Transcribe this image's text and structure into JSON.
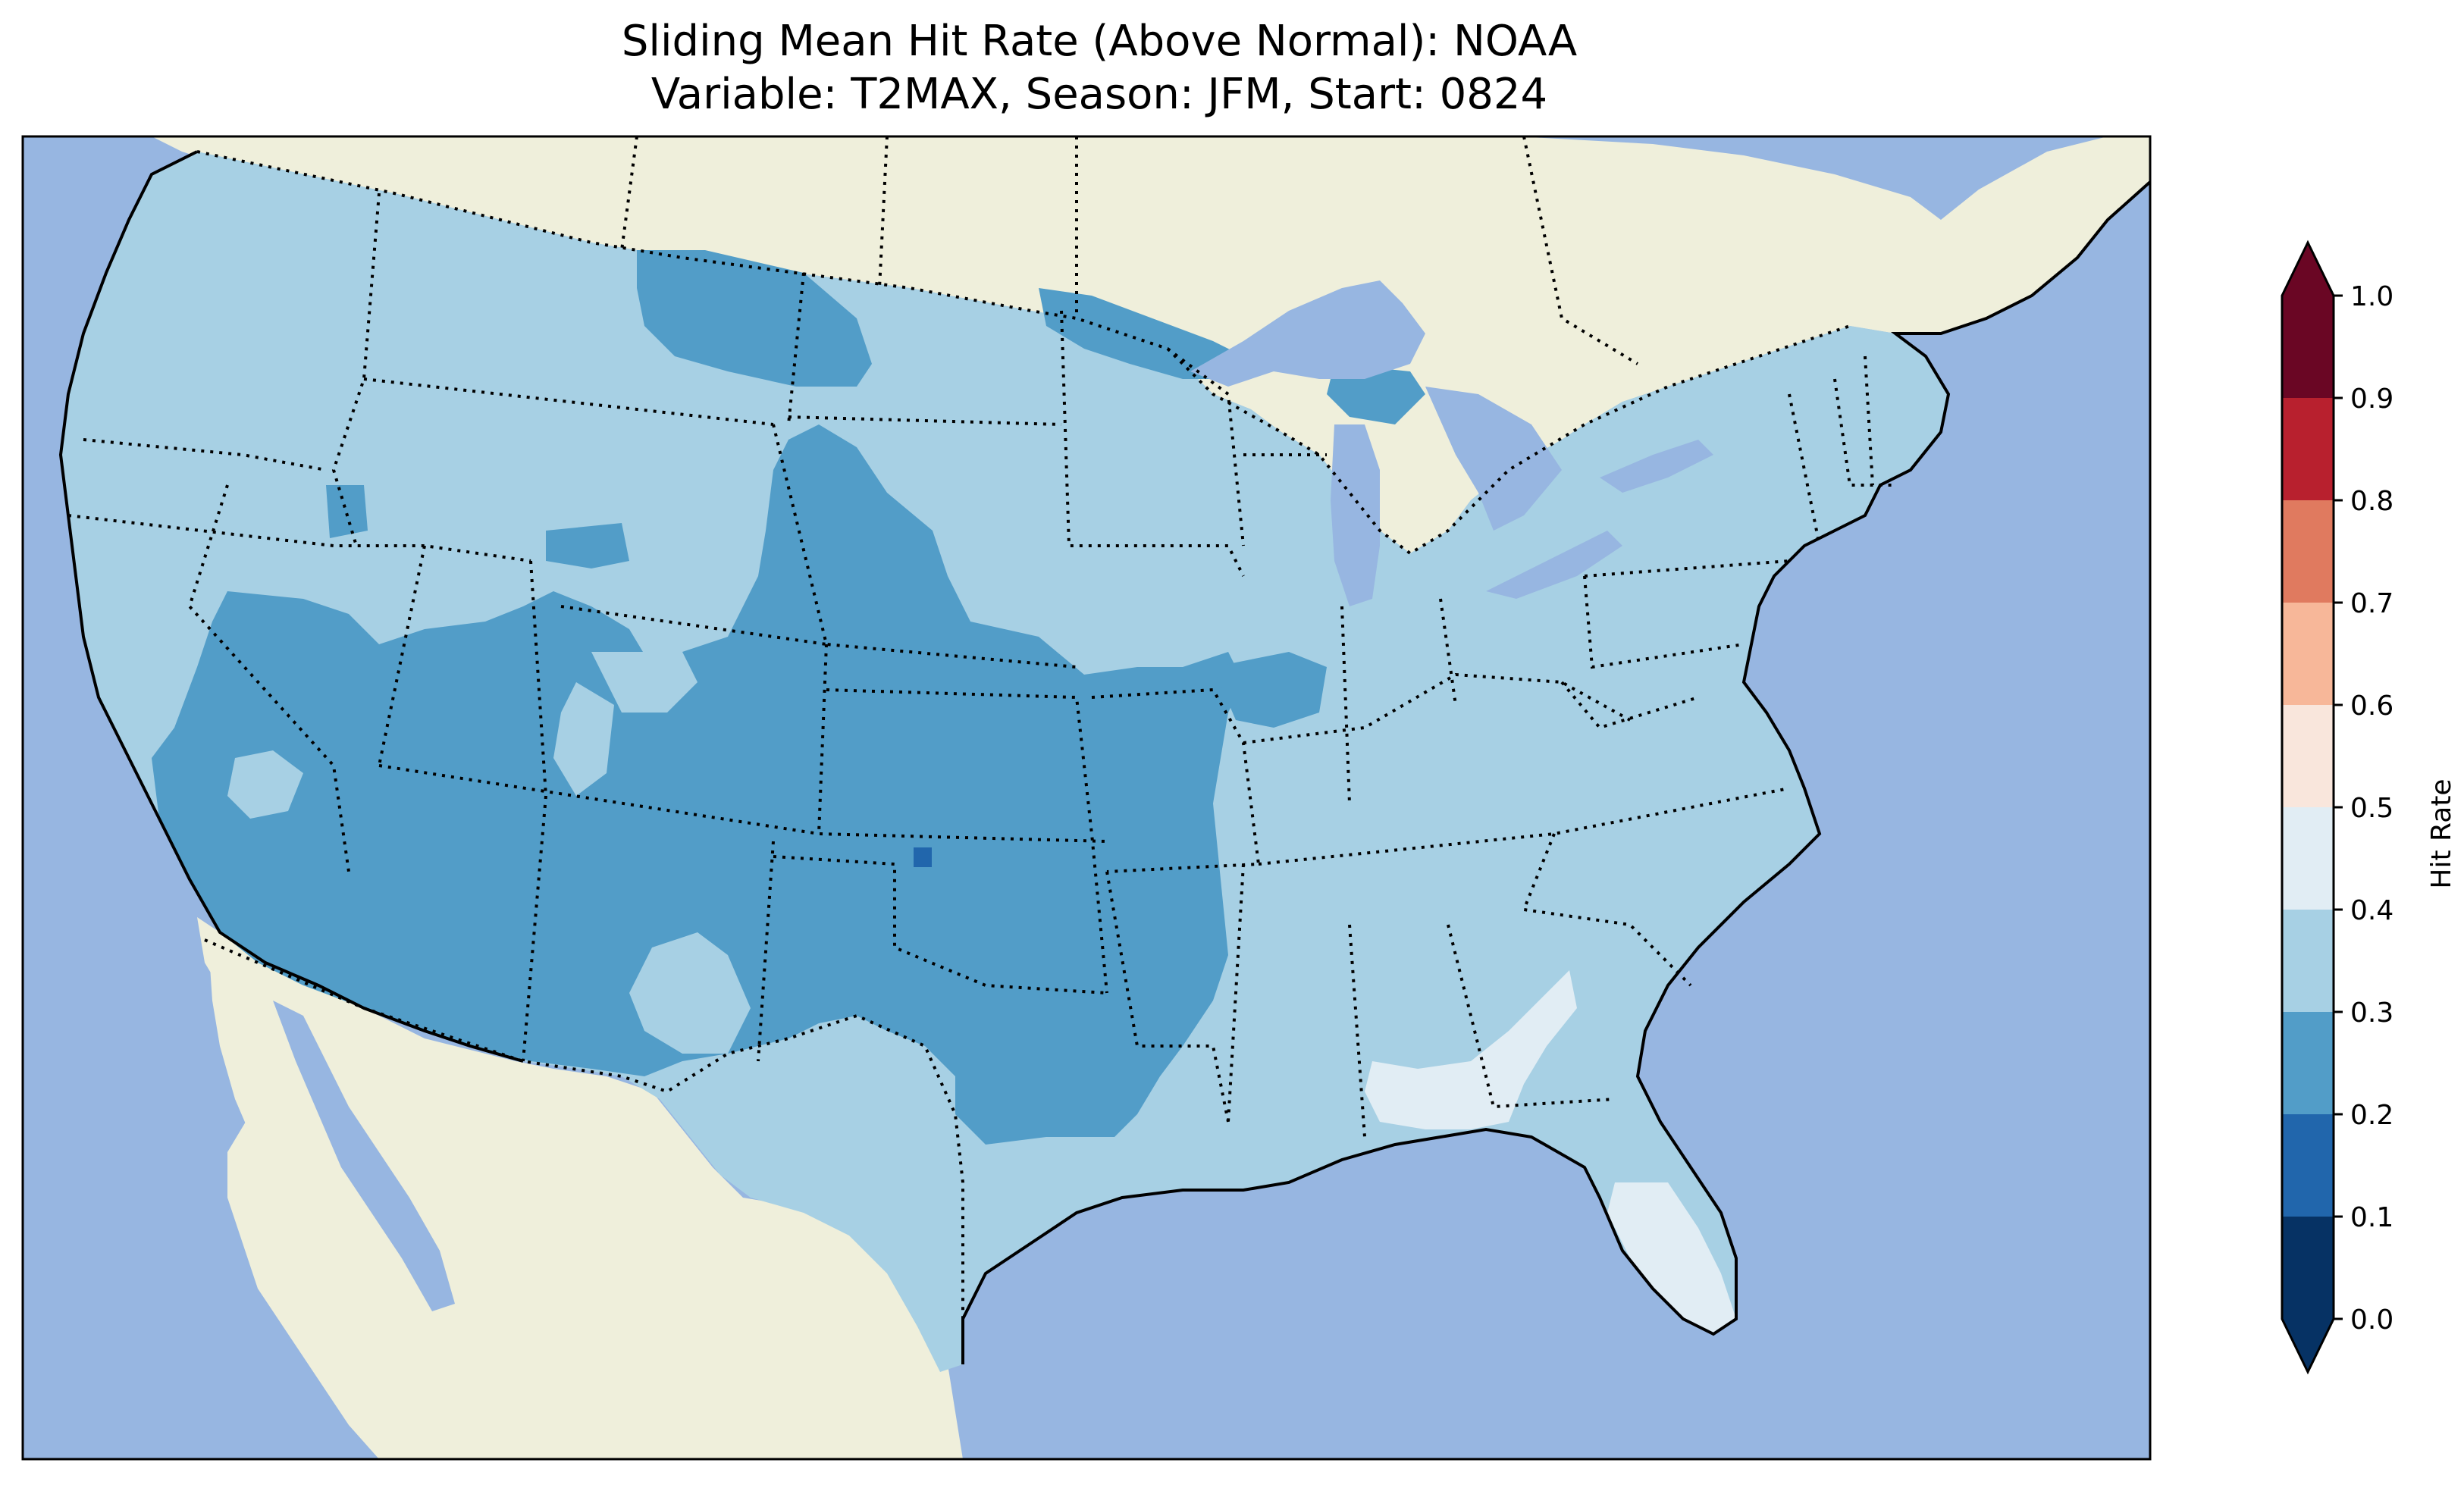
{
  "title": "Sliding Mean Hit Rate (Above Normal): NOAA",
  "subtitle": "Variable: T2MAX, Season: JFM, Start: 0824",
  "colorbar": {
    "label": "Hit Rate",
    "ticks": [
      "0.0",
      "0.1",
      "0.2",
      "0.3",
      "0.4",
      "0.5",
      "0.6",
      "0.7",
      "0.8",
      "0.9",
      "1.0"
    ],
    "bins": [
      {
        "range": [
          0.0,
          0.1
        ],
        "color": "#063264"
      },
      {
        "range": [
          0.1,
          0.2
        ],
        "color": "#2166ac"
      },
      {
        "range": [
          0.2,
          0.3
        ],
        "color": "#529dc8"
      },
      {
        "range": [
          0.3,
          0.4
        ],
        "color": "#a7d0e4"
      },
      {
        "range": [
          0.4,
          0.5
        ],
        "color": "#e1edf4"
      },
      {
        "range": [
          0.5,
          0.6
        ],
        "color": "#f9e6dc"
      },
      {
        "range": [
          0.6,
          0.7
        ],
        "color": "#f7b799"
      },
      {
        "range": [
          0.7,
          0.8
        ],
        "color": "#e07a5f"
      },
      {
        "range": [
          0.8,
          0.9
        ],
        "color": "#b8202e"
      },
      {
        "range": [
          0.9,
          1.0
        ],
        "color": "#6a0624"
      }
    ],
    "extend": "both"
  },
  "map": {
    "ocean_color": "#97b6e1",
    "land_color": "#efefdb",
    "lake_color": "#97b6e1",
    "regions": [
      {
        "name": "general-conus",
        "hit_rate_bin": "0.3-0.4"
      },
      {
        "name": "northern-plains",
        "hit_rate_bin": "0.2-0.3"
      },
      {
        "name": "southwest-and-southern-plains",
        "hit_rate_bin": "0.2-0.3"
      },
      {
        "name": "southeast-georgia-florida",
        "hit_rate_bin": "0.4-0.5"
      },
      {
        "name": "oklahoma-spot",
        "hit_rate_bin": "0.1-0.2"
      }
    ]
  }
}
